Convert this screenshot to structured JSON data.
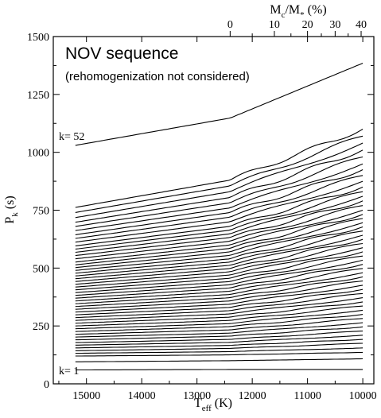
{
  "chart_data": {
    "type": "line",
    "title": "NOV sequence",
    "subtitle": "(rehomogenization not considered)",
    "xlabel_main": "T",
    "xlabel_sub": "eff",
    "xlabel_unit": " (K)",
    "ylabel_main": "P",
    "ylabel_sub": "k",
    "ylabel_unit": " (s)",
    "top_label": "M",
    "top_label_sub1": "c",
    "top_label_mid": "/M",
    "top_label_sub2": "*",
    "top_label_unit": " (%)",
    "xlim": [
      15600,
      9800
    ],
    "ylim": [
      0,
      1500
    ],
    "x_reversed": true,
    "grid": false,
    "x_ticks": [
      15000,
      14000,
      13000,
      12000,
      11000,
      10000
    ],
    "x_ticks_labels": [
      "15000",
      "14000",
      "13000",
      "12000",
      "11000",
      "10000"
    ],
    "y_ticks": [
      0,
      250,
      500,
      750,
      1000,
      1250,
      1500
    ],
    "y_ticks_labels": [
      "0",
      "250",
      "500",
      "750",
      "1000",
      "1250",
      "1500"
    ],
    "top_ticks": [
      {
        "label": "0",
        "teff": 12400
      },
      {
        "label": "10",
        "teff": 11600
      },
      {
        "label": "20",
        "teff": 11000
      },
      {
        "label": "30",
        "teff": 10500
      },
      {
        "label": "40",
        "teff": 10030
      }
    ],
    "x_start": 15200,
    "x_end": 10000,
    "x_knee": 12400,
    "k_first": 1,
    "k_last": 52,
    "k_first_label": "k= 1",
    "k_last_label": "k= 52",
    "series_lo": [
      60,
      95,
      120,
      132,
      143,
      155,
      167,
      178,
      190,
      202,
      214,
      226,
      238,
      250,
      262,
      274,
      286,
      298,
      310,
      322,
      334,
      346,
      358,
      370,
      382,
      394,
      406,
      418,
      430,
      442,
      454,
      466,
      478,
      490,
      502,
      514,
      526,
      540,
      554,
      568,
      582,
      596,
      612,
      628,
      644,
      662,
      680,
      698,
      718,
      740,
      762,
      1030
    ],
    "series_knee": [
      62,
      100,
      125,
      139,
      153,
      166,
      179,
      192,
      206,
      219,
      233,
      247,
      260,
      274,
      288,
      302,
      316,
      330,
      344,
      358,
      372,
      386,
      400,
      414,
      428,
      442,
      456,
      470,
      484,
      498,
      512,
      526,
      540,
      555,
      570,
      585,
      600,
      616,
      632,
      648,
      664,
      680,
      700,
      720,
      740,
      760,
      782,
      805,
      830,
      855,
      880,
      1148
    ],
    "series_hi": [
      62,
      108,
      136,
      155,
      175,
      192,
      210,
      228,
      246,
      264,
      282,
      300,
      318,
      336,
      354,
      372,
      390,
      408,
      426,
      444,
      462,
      480,
      498,
      516,
      534,
      552,
      570,
      588,
      606,
      624,
      642,
      660,
      678,
      696,
      714,
      732,
      750,
      770,
      790,
      810,
      830,
      850,
      875,
      900,
      925,
      950,
      980,
      1010,
      1040,
      1070,
      1100,
      1385
    ]
  }
}
